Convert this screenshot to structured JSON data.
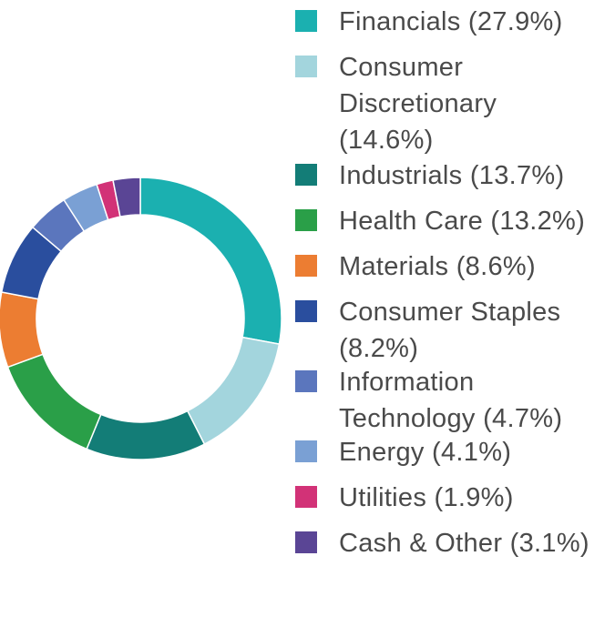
{
  "chart_data": {
    "type": "pie",
    "variant": "donut",
    "legend_placement": "right",
    "slices": [
      {
        "label": "Financials (27.9%)",
        "category": "Financials",
        "value": 27.9,
        "color": "#1BB0B0"
      },
      {
        "label": "Consumer Discretionary (14.6%)",
        "category": "Consumer Discretionary",
        "value": 14.6,
        "color": "#A3D5DD"
      },
      {
        "label": "Industrials (13.7%)",
        "category": "Industrials",
        "value": 13.7,
        "color": "#137D77"
      },
      {
        "label": "Health Care (13.2%)",
        "category": "Health Care",
        "value": 13.2,
        "color": "#2A9F48"
      },
      {
        "label": "Materials (8.6%)",
        "category": "Materials",
        "value": 8.6,
        "color": "#EC7D32"
      },
      {
        "label": "Consumer Staples (8.2%)",
        "category": "Consumer Staples",
        "value": 8.2,
        "color": "#2A4E9E"
      },
      {
        "label": "Information Technology (4.7%)",
        "category": "Information Technology",
        "value": 4.7,
        "color": "#5B76BD"
      },
      {
        "label": "Energy (4.1%)",
        "category": "Energy",
        "value": 4.1,
        "color": "#7AA0D4"
      },
      {
        "label": "Utilities (1.9%)",
        "category": "Utilities",
        "value": 1.9,
        "color": "#D23277"
      },
      {
        "label": "Cash & Other (3.1%)",
        "category": "Cash & Other",
        "value": 3.1,
        "color": "#5A4595"
      }
    ]
  }
}
